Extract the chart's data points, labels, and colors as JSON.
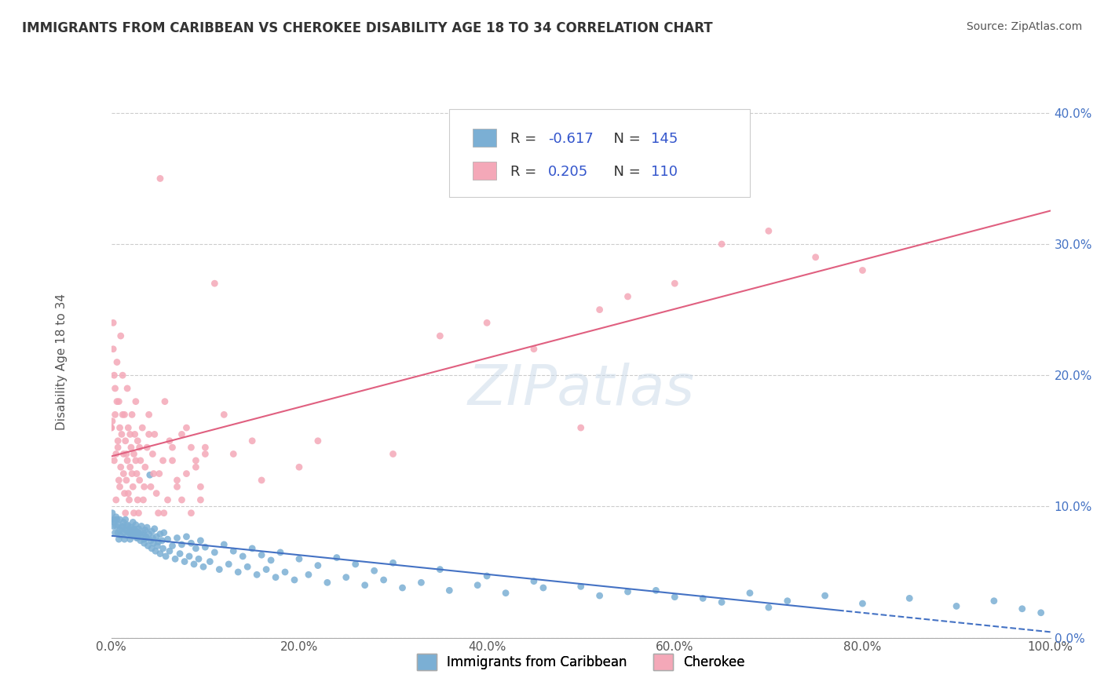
{
  "title": "IMMIGRANTS FROM CARIBBEAN VS CHEROKEE DISABILITY AGE 18 TO 34 CORRELATION CHART",
  "source": "Source: ZipAtlas.com",
  "xlabel_bottom": "Immigrants from Caribbean",
  "ylabel": "Disability Age 18 to 34",
  "xlim": [
    0,
    1.0
  ],
  "ylim": [
    0,
    0.42
  ],
  "blue_R": -0.617,
  "blue_N": 145,
  "pink_R": 0.205,
  "pink_N": 110,
  "blue_color": "#7bafd4",
  "pink_color": "#f4a8b8",
  "blue_line_color": "#4472c4",
  "pink_line_color": "#e06080",
  "watermark": "ZIPatlas",
  "legend_R_color": "#3355cc",
  "legend_N_color": "#3355cc",
  "blue_scatter_x": [
    0.0,
    0.002,
    0.003,
    0.004,
    0.005,
    0.006,
    0.007,
    0.008,
    0.009,
    0.01,
    0.012,
    0.013,
    0.014,
    0.015,
    0.016,
    0.017,
    0.018,
    0.019,
    0.02,
    0.021,
    0.022,
    0.023,
    0.024,
    0.025,
    0.026,
    0.027,
    0.028,
    0.029,
    0.03,
    0.032,
    0.034,
    0.035,
    0.036,
    0.037,
    0.038,
    0.04,
    0.042,
    0.043,
    0.044,
    0.046,
    0.048,
    0.05,
    0.052,
    0.054,
    0.056,
    0.06,
    0.065,
    0.07,
    0.075,
    0.08,
    0.085,
    0.09,
    0.095,
    0.1,
    0.11,
    0.12,
    0.13,
    0.14,
    0.15,
    0.16,
    0.17,
    0.18,
    0.2,
    0.22,
    0.24,
    0.26,
    0.28,
    0.3,
    0.35,
    0.4,
    0.45,
    0.5,
    0.55,
    0.6,
    0.65,
    0.7,
    0.001,
    0.003,
    0.005,
    0.007,
    0.009,
    0.011,
    0.013,
    0.015,
    0.017,
    0.019,
    0.021,
    0.023,
    0.025,
    0.027,
    0.029,
    0.031,
    0.033,
    0.035,
    0.037,
    0.039,
    0.041,
    0.043,
    0.045,
    0.047,
    0.049,
    0.052,
    0.055,
    0.058,
    0.062,
    0.068,
    0.073,
    0.078,
    0.083,
    0.088,
    0.093,
    0.098,
    0.105,
    0.115,
    0.125,
    0.135,
    0.145,
    0.155,
    0.165,
    0.175,
    0.185,
    0.195,
    0.21,
    0.23,
    0.25,
    0.27,
    0.29,
    0.31,
    0.33,
    0.36,
    0.39,
    0.42,
    0.46,
    0.52,
    0.58,
    0.63,
    0.68,
    0.72,
    0.76,
    0.8,
    0.85,
    0.9,
    0.94,
    0.97,
    0.99
  ],
  "blue_scatter_y": [
    0.09,
    0.085,
    0.09,
    0.08,
    0.085,
    0.09,
    0.08,
    0.075,
    0.082,
    0.078,
    0.085,
    0.08,
    0.075,
    0.09,
    0.082,
    0.078,
    0.085,
    0.08,
    0.075,
    0.082,
    0.078,
    0.088,
    0.083,
    0.079,
    0.086,
    0.081,
    0.076,
    0.083,
    0.079,
    0.085,
    0.08,
    0.075,
    0.082,
    0.077,
    0.084,
    0.079,
    0.074,
    0.081,
    0.076,
    0.083,
    0.077,
    0.073,
    0.079,
    0.074,
    0.08,
    0.075,
    0.07,
    0.076,
    0.071,
    0.077,
    0.072,
    0.068,
    0.074,
    0.069,
    0.065,
    0.071,
    0.066,
    0.062,
    0.068,
    0.063,
    0.059,
    0.065,
    0.06,
    0.055,
    0.061,
    0.056,
    0.051,
    0.057,
    0.052,
    0.047,
    0.043,
    0.039,
    0.035,
    0.031,
    0.027,
    0.023,
    0.095,
    0.088,
    0.092,
    0.086,
    0.09,
    0.084,
    0.088,
    0.082,
    0.086,
    0.08,
    0.084,
    0.078,
    0.082,
    0.076,
    0.08,
    0.074,
    0.078,
    0.072,
    0.076,
    0.07,
    0.124,
    0.068,
    0.072,
    0.066,
    0.07,
    0.064,
    0.068,
    0.062,
    0.066,
    0.06,
    0.064,
    0.058,
    0.062,
    0.056,
    0.06,
    0.054,
    0.058,
    0.052,
    0.056,
    0.05,
    0.054,
    0.048,
    0.052,
    0.046,
    0.05,
    0.044,
    0.048,
    0.042,
    0.046,
    0.04,
    0.044,
    0.038,
    0.042,
    0.036,
    0.04,
    0.034,
    0.038,
    0.032,
    0.036,
    0.03,
    0.034,
    0.028,
    0.032,
    0.026,
    0.03,
    0.024,
    0.028,
    0.022,
    0.019
  ],
  "pink_scatter_x": [
    0.0,
    0.002,
    0.003,
    0.004,
    0.005,
    0.006,
    0.007,
    0.008,
    0.009,
    0.01,
    0.012,
    0.013,
    0.014,
    0.015,
    0.016,
    0.017,
    0.018,
    0.02,
    0.022,
    0.024,
    0.026,
    0.028,
    0.03,
    0.033,
    0.036,
    0.04,
    0.044,
    0.048,
    0.052,
    0.057,
    0.062,
    0.07,
    0.08,
    0.09,
    0.1,
    0.12,
    0.15,
    0.2,
    0.3,
    0.5,
    0.001,
    0.003,
    0.005,
    0.007,
    0.009,
    0.011,
    0.013,
    0.015,
    0.017,
    0.019,
    0.021,
    0.023,
    0.025,
    0.027,
    0.029,
    0.031,
    0.034,
    0.038,
    0.042,
    0.046,
    0.051,
    0.056,
    0.065,
    0.075,
    0.085,
    0.095,
    0.11,
    0.13,
    0.16,
    0.22,
    0.0,
    0.002,
    0.004,
    0.006,
    0.008,
    0.01,
    0.012,
    0.014,
    0.016,
    0.018,
    0.02,
    0.022,
    0.024,
    0.026,
    0.028,
    0.03,
    0.035,
    0.04,
    0.045,
    0.05,
    0.055,
    0.06,
    0.065,
    0.07,
    0.075,
    0.08,
    0.085,
    0.09,
    0.095,
    0.1,
    0.6,
    0.65,
    0.7,
    0.75,
    0.8,
    0.52,
    0.55,
    0.45,
    0.4,
    0.35
  ],
  "pink_scatter_y": [
    0.16,
    0.24,
    0.2,
    0.17,
    0.14,
    0.18,
    0.15,
    0.12,
    0.16,
    0.13,
    0.17,
    0.14,
    0.11,
    0.15,
    0.12,
    0.19,
    0.16,
    0.13,
    0.17,
    0.14,
    0.18,
    0.15,
    0.12,
    0.16,
    0.13,
    0.17,
    0.14,
    0.11,
    0.35,
    0.18,
    0.15,
    0.12,
    0.16,
    0.13,
    0.14,
    0.17,
    0.15,
    0.13,
    0.14,
    0.16,
    0.165,
    0.135,
    0.105,
    0.145,
    0.115,
    0.155,
    0.125,
    0.095,
    0.135,
    0.105,
    0.145,
    0.115,
    0.155,
    0.125,
    0.095,
    0.135,
    0.105,
    0.145,
    0.115,
    0.155,
    0.125,
    0.095,
    0.135,
    0.105,
    0.145,
    0.115,
    0.27,
    0.14,
    0.12,
    0.15,
    0.16,
    0.22,
    0.19,
    0.21,
    0.18,
    0.23,
    0.2,
    0.17,
    0.14,
    0.11,
    0.155,
    0.125,
    0.095,
    0.135,
    0.105,
    0.145,
    0.115,
    0.155,
    0.125,
    0.095,
    0.135,
    0.105,
    0.145,
    0.115,
    0.155,
    0.125,
    0.095,
    0.135,
    0.105,
    0.145,
    0.27,
    0.3,
    0.31,
    0.29,
    0.28,
    0.25,
    0.26,
    0.22,
    0.24,
    0.23
  ]
}
